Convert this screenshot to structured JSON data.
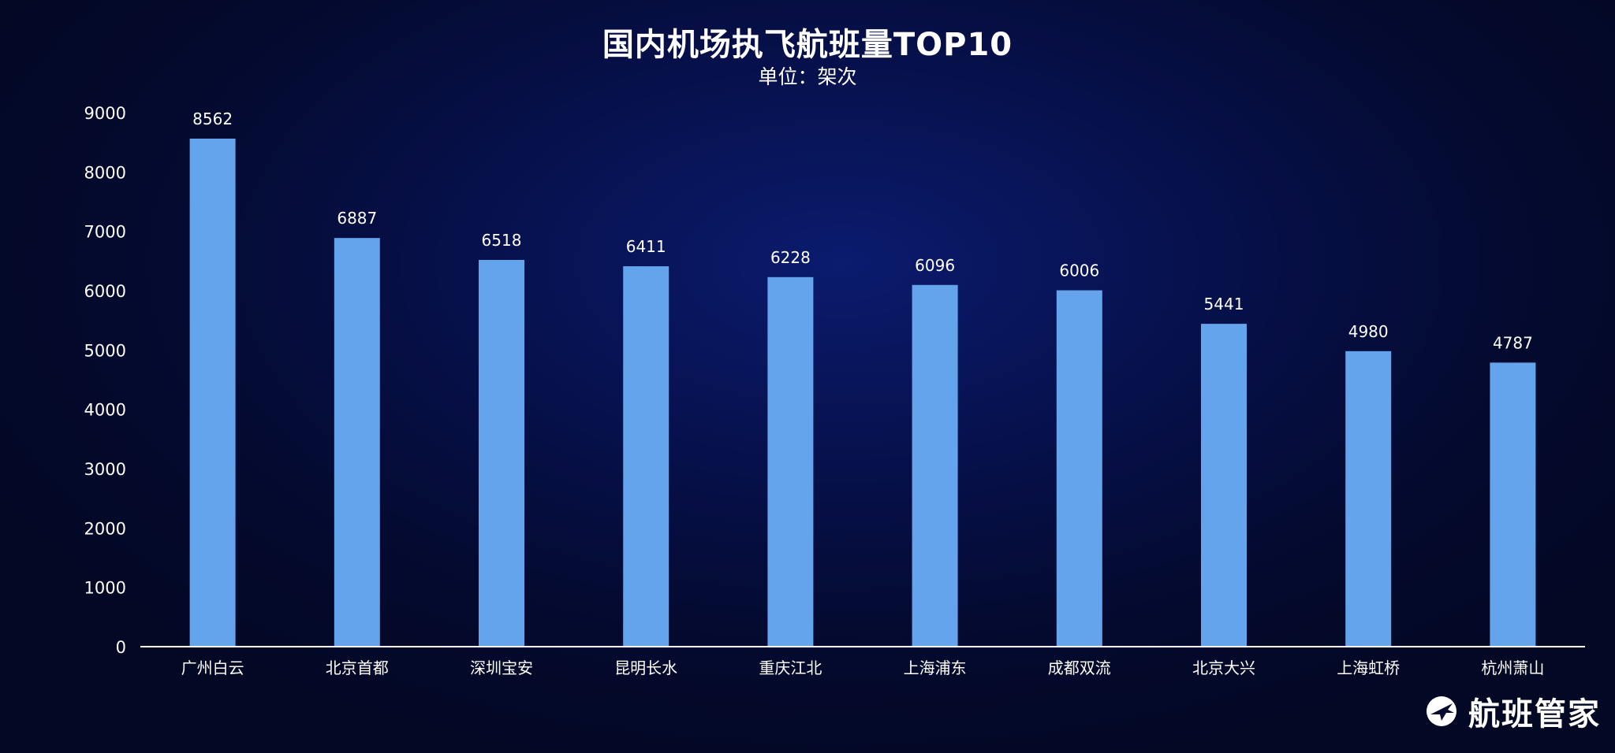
{
  "chart_data": {
    "type": "bar",
    "title": "国内机场执飞航班量TOP10",
    "subtitle": "单位：架次",
    "categories": [
      "广州白云",
      "北京首都",
      "深圳宝安",
      "昆明长水",
      "重庆江北",
      "上海浦东",
      "成都双流",
      "北京大兴",
      "上海虹桥",
      "杭州萧山"
    ],
    "values": [
      8562,
      6887,
      6518,
      6411,
      6228,
      6096,
      6006,
      5441,
      4980,
      4787
    ],
    "ylim": [
      0,
      9000
    ],
    "yticks": [
      0,
      1000,
      2000,
      3000,
      4000,
      5000,
      6000,
      7000,
      8000,
      9000
    ],
    "xlabel": "",
    "ylabel": "",
    "grid": false,
    "bar_color": "#63a4ec",
    "axis_color": "#ffffff"
  },
  "brand": {
    "name": "航班管家",
    "icon": "plane-logo-icon"
  }
}
